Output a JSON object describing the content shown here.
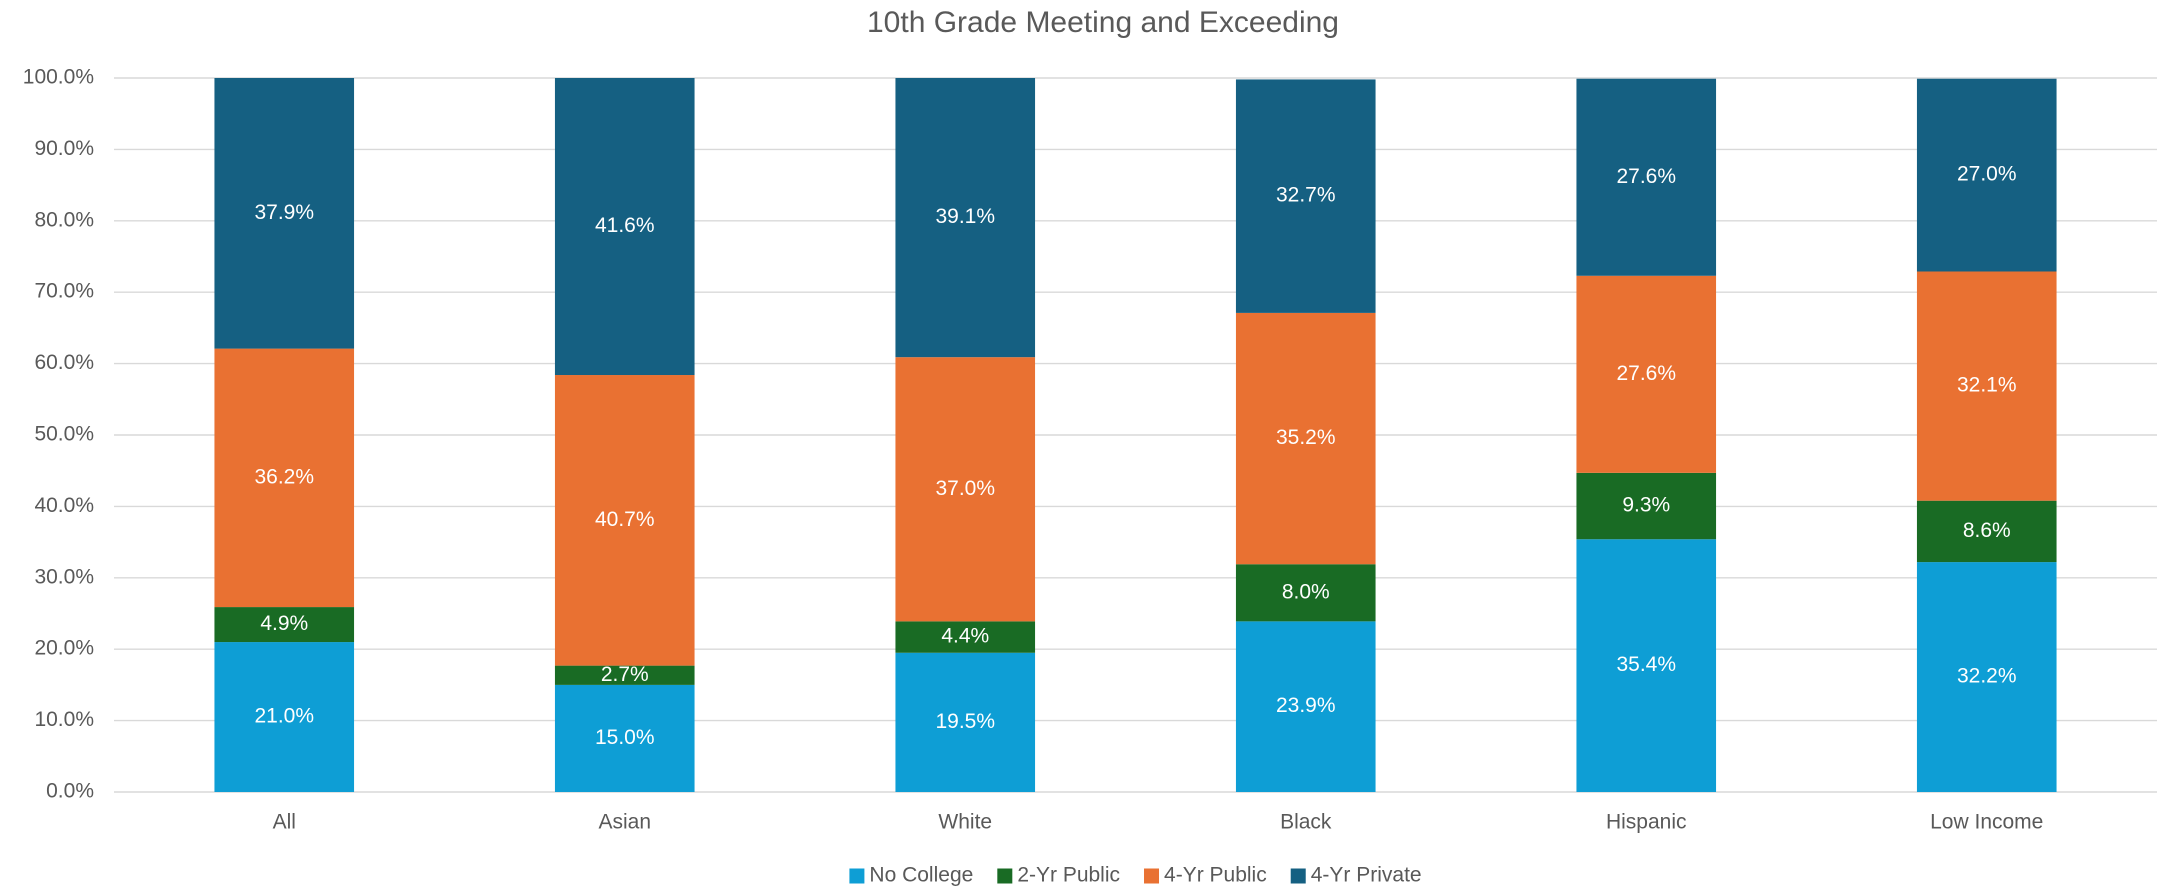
{
  "chart_data": {
    "type": "stacked_bar",
    "title": "10th Grade Meeting and Exceeding",
    "categories": [
      "All",
      "Asian",
      "White",
      "Black",
      "Hispanic",
      "Low Income"
    ],
    "series": [
      {
        "name": "No College",
        "color": "#0e9ed5",
        "values": [
          21.0,
          15.0,
          19.5,
          23.9,
          35.4,
          32.2
        ],
        "value_labels": [
          "21.0%",
          "15.0%",
          "19.5%",
          "23.9%",
          "35.4%",
          "32.2%"
        ]
      },
      {
        "name": "2-Yr Public",
        "color": "#196b24",
        "values": [
          4.9,
          2.7,
          4.4,
          8.0,
          9.3,
          8.6
        ],
        "value_labels": [
          "4.9%",
          "2.7%",
          "4.4%",
          "8.0%",
          "9.3%",
          "8.6%"
        ]
      },
      {
        "name": "4-Yr Public",
        "color": "#e97132",
        "values": [
          36.2,
          40.7,
          37.0,
          35.2,
          27.6,
          32.1
        ],
        "value_labels": [
          "36.2%",
          "40.7%",
          "37.0%",
          "35.2%",
          "27.6%",
          "32.1%"
        ]
      },
      {
        "name": "4-Yr Private",
        "color": "#156082",
        "values": [
          37.9,
          41.6,
          39.1,
          32.7,
          27.6,
          27.0
        ],
        "value_labels": [
          "37.9%",
          "41.6%",
          "39.1%",
          "32.7%",
          "27.6%",
          "27.0%"
        ]
      }
    ],
    "ylim": [
      0,
      100
    ],
    "yticks": [
      {
        "value": 0,
        "label": "0.0%"
      },
      {
        "value": 10,
        "label": "10.0%"
      },
      {
        "value": 20,
        "label": "20.0%"
      },
      {
        "value": 30,
        "label": "30.0%"
      },
      {
        "value": 40,
        "label": "40.0%"
      },
      {
        "value": 50,
        "label": "50.0%"
      },
      {
        "value": 60,
        "label": "60.0%"
      },
      {
        "value": 70,
        "label": "70.0%"
      },
      {
        "value": 80,
        "label": "80.0%"
      },
      {
        "value": 90,
        "label": "90.0%"
      },
      {
        "value": 100,
        "label": "100.0%"
      }
    ],
    "grid": true,
    "legend": "bottom"
  }
}
